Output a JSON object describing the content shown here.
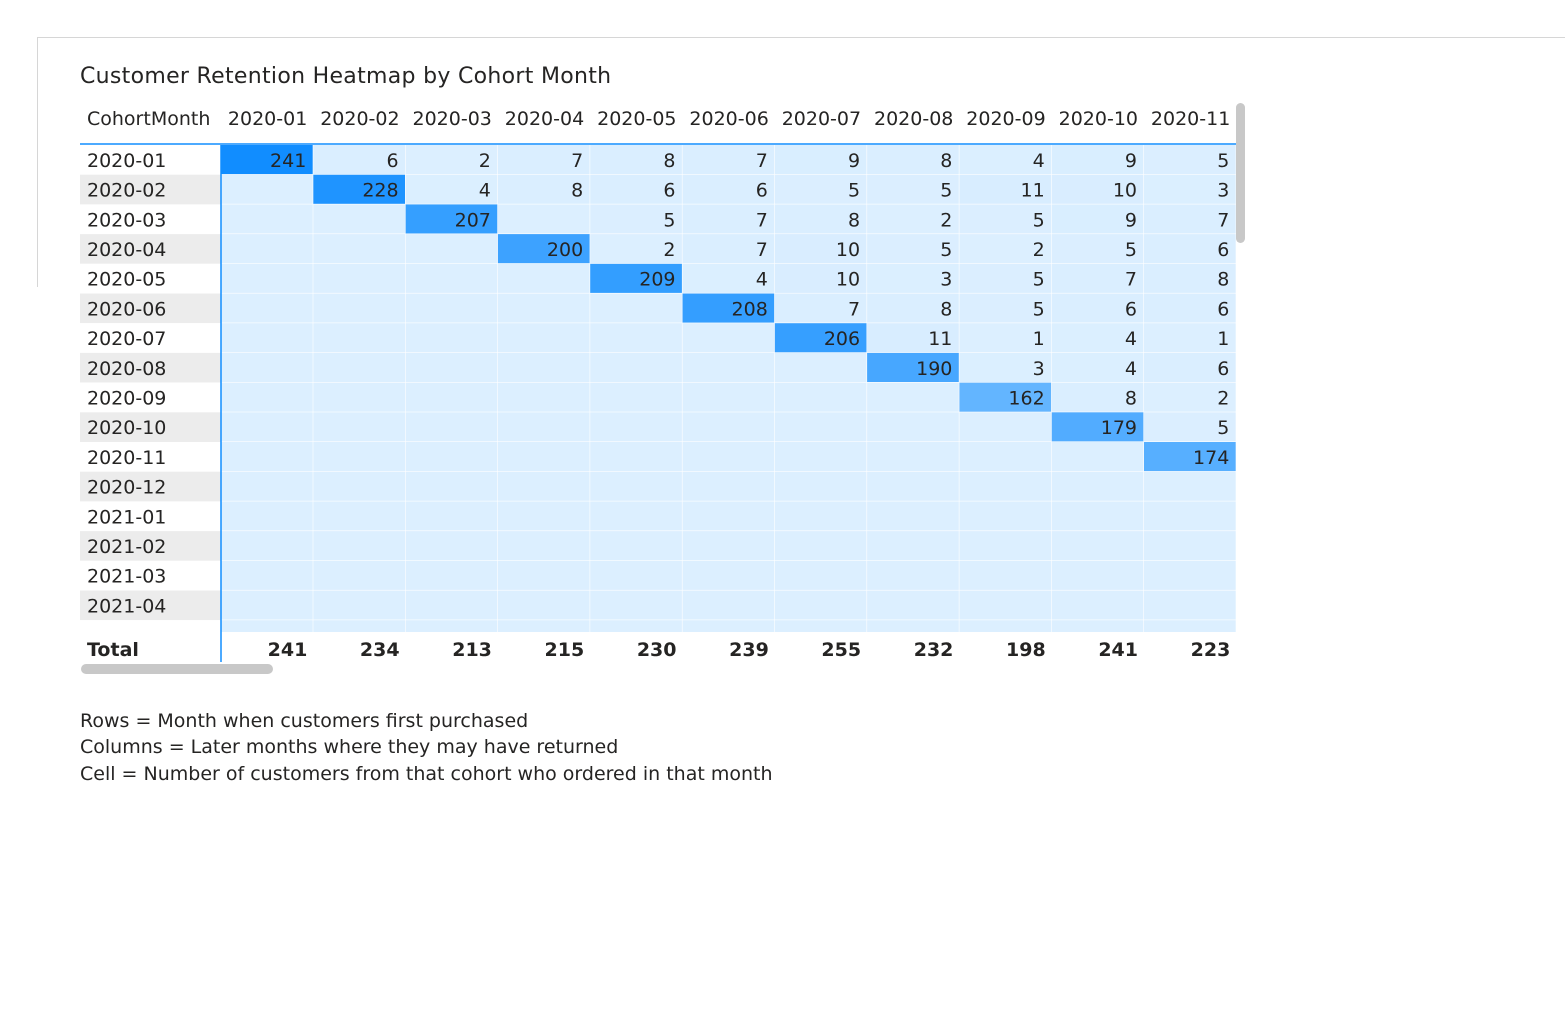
{
  "chart_data": {
    "type": "heatmap",
    "title": "Customer Retention Heatmap by Cohort Month",
    "row_header": "CohortMonth",
    "columns": [
      "2020-01",
      "2020-02",
      "2020-03",
      "2020-04",
      "2020-05",
      "2020-06",
      "2020-07",
      "2020-08",
      "2020-09",
      "2020-10",
      "2020-11"
    ],
    "rows": [
      "2020-01",
      "2020-02",
      "2020-03",
      "2020-04",
      "2020-05",
      "2020-06",
      "2020-07",
      "2020-08",
      "2020-09",
      "2020-10",
      "2020-11",
      "2020-12",
      "2021-01",
      "2021-02",
      "2021-03",
      "2021-04"
    ],
    "values": [
      [
        241,
        6,
        2,
        7,
        8,
        7,
        9,
        8,
        4,
        9,
        5
      ],
      [
        null,
        228,
        4,
        8,
        6,
        6,
        5,
        5,
        11,
        10,
        3
      ],
      [
        null,
        null,
        207,
        null,
        5,
        7,
        8,
        2,
        5,
        9,
        7
      ],
      [
        null,
        null,
        null,
        200,
        2,
        7,
        10,
        5,
        2,
        5,
        6
      ],
      [
        null,
        null,
        null,
        null,
        209,
        4,
        10,
        3,
        5,
        7,
        8
      ],
      [
        null,
        null,
        null,
        null,
        null,
        208,
        7,
        8,
        5,
        6,
        6
      ],
      [
        null,
        null,
        null,
        null,
        null,
        null,
        206,
        11,
        1,
        4,
        1
      ],
      [
        null,
        null,
        null,
        null,
        null,
        null,
        null,
        190,
        3,
        4,
        6
      ],
      [
        null,
        null,
        null,
        null,
        null,
        null,
        null,
        null,
        162,
        8,
        2
      ],
      [
        null,
        null,
        null,
        null,
        null,
        null,
        null,
        null,
        null,
        179,
        5
      ],
      [
        null,
        null,
        null,
        null,
        null,
        null,
        null,
        null,
        null,
        null,
        174
      ],
      [
        null,
        null,
        null,
        null,
        null,
        null,
        null,
        null,
        null,
        null,
        null
      ],
      [
        null,
        null,
        null,
        null,
        null,
        null,
        null,
        null,
        null,
        null,
        null
      ],
      [
        null,
        null,
        null,
        null,
        null,
        null,
        null,
        null,
        null,
        null,
        null
      ],
      [
        null,
        null,
        null,
        null,
        null,
        null,
        null,
        null,
        null,
        null,
        null
      ],
      [
        null,
        null,
        null,
        null,
        null,
        null,
        null,
        null,
        null,
        null,
        null
      ]
    ],
    "total_label": "Total",
    "totals": [
      241,
      234,
      213,
      215,
      230,
      239,
      255,
      232,
      198,
      241,
      223
    ],
    "color_scale": {
      "min_color": "#dcefff",
      "max_color": "#118dff"
    }
  },
  "notes": [
    "Rows = Month when customers first purchased",
    "Columns = Later months where they may have returned",
    "Cell = Number of customers from that cohort who ordered in that month"
  ],
  "colors": {
    "header_rule": "#118dff",
    "row_band": "#ececec",
    "text": "#252423"
  }
}
